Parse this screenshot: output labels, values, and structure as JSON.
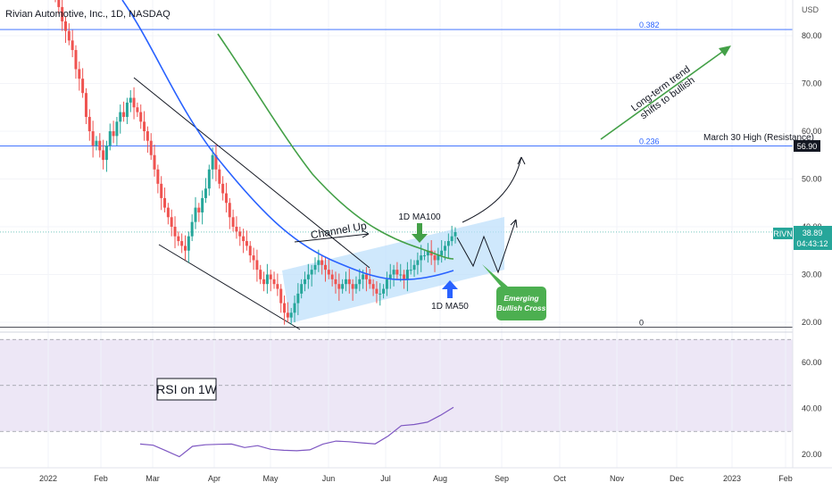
{
  "header": {
    "title": "Rivian Automotive, Inc., 1D, NASDAQ"
  },
  "currency": "USD",
  "colors": {
    "up": "#26a69a",
    "down": "#ef5350",
    "ma50": "#2962ff",
    "ma100": "#43a047",
    "fib": "#2962ff",
    "channel": "#bbdefb",
    "rsi_band": "#ede7f6",
    "rsi_line": "#7e57c2",
    "trend_arrow": "#43a047",
    "callout": "#4caf50"
  },
  "chart_data": [
    {
      "type": "candlestick",
      "title": "Rivian Automotive, Inc., 1D, NASDAQ",
      "y_axis_ticks": [
        "20.00",
        "30.00",
        "40.00",
        "50.00",
        "60.00",
        "70.00",
        "80.00"
      ],
      "ylim": [
        17,
        90
      ],
      "x_axis_ticks": [
        "2022",
        "Feb",
        "Mar",
        "Apr",
        "May",
        "Jun",
        "Jul",
        "Aug",
        "Sep",
        "Oct",
        "Nov",
        "Dec",
        "2023",
        "Feb"
      ],
      "closes": [
        88,
        86,
        83,
        81,
        79,
        77,
        73,
        71,
        68,
        63,
        60,
        57,
        58,
        56,
        54,
        57,
        60,
        59,
        62,
        64,
        63,
        66,
        67,
        65,
        64,
        62,
        60,
        58,
        55,
        52,
        49,
        46,
        44,
        42,
        40,
        38,
        37,
        36,
        35,
        38,
        41,
        44,
        43,
        46,
        48,
        52,
        55,
        52,
        49,
        47,
        45,
        42,
        40,
        39,
        38,
        37,
        36,
        34,
        33,
        31,
        29,
        28,
        30,
        29,
        28,
        27,
        24,
        22,
        21,
        22,
        24,
        26,
        28,
        29,
        30,
        31,
        32,
        33,
        32,
        31,
        30,
        29,
        28,
        27,
        28,
        29,
        28,
        27,
        28,
        29,
        30,
        29,
        28,
        27,
        26,
        26,
        27,
        29,
        30,
        31,
        30,
        30,
        29,
        31,
        31,
        32,
        33,
        34,
        34,
        35,
        34,
        33,
        34,
        35,
        36,
        37,
        38,
        38.89
      ],
      "price_label": {
        "symbol": "RIVN",
        "price": "38.89",
        "countdown": "04:43:12"
      },
      "resistance_label": "56.90",
      "fib_levels": [
        {
          "label": "0.382",
          "price": 81.3
        },
        {
          "label": "0.236",
          "price": 56.9
        },
        {
          "label": "0",
          "price": 19.0
        }
      ],
      "annotations": {
        "resistance": "March 30 High (Resistance)",
        "trend": [
          "Long-term trend",
          "shifts to bullish"
        ],
        "channel": "Channel Up",
        "ma100": "1D MA100",
        "ma50": "1D MA50",
        "cross": [
          "Emerging",
          "Bullish Cross"
        ]
      }
    },
    {
      "type": "line",
      "title": "RSI on 1W",
      "y_axis_ticks": [
        "20.00",
        "40.00",
        "60.00"
      ],
      "ylim": [
        15,
        72
      ],
      "band": [
        30,
        70
      ],
      "mid": 50,
      "values": [
        24.5,
        24.0,
        21.5,
        19.0,
        23.5,
        24.2,
        24.4,
        24.5,
        23.0,
        23.8,
        22.2,
        21.8,
        21.6,
        22.0,
        24.5,
        25.8,
        25.5,
        25.0,
        24.6,
        28.0,
        32.5,
        33.0,
        34.0,
        37.0,
        40.5
      ]
    }
  ]
}
